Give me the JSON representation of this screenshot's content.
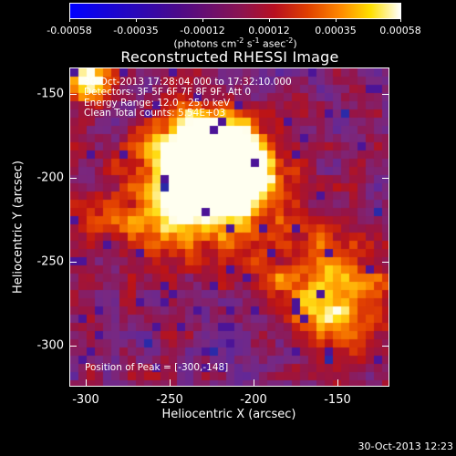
{
  "colorbar": {
    "tick_labels": [
      "-0.00058",
      "-0.00035",
      "-0.00012",
      "0.00012",
      "0.00035",
      "0.00058"
    ],
    "units": "(photons cm-2 s-1 asec-2)"
  },
  "title": "Reconstructed RHESSI Image",
  "info": {
    "time_range": "30-Oct-2013 17:28:04.000 to 17:32:10.000",
    "detectors": "Detectors: 3F 5F 6F 7F 8F 9F, Att 0",
    "energy_range": "Energy Range: 12.0 - 25.0 keV",
    "algorithm_counts": "Clean    Total counts: 5.54E+03"
  },
  "peak": "Position of Peak = [-300,-148]",
  "axes": {
    "x_label": "Heliocentric X (arcsec)",
    "y_label": "Heliocentric Y (arcsec)",
    "x_ticks": [
      "-300",
      "-250",
      "-200",
      "-150"
    ],
    "y_ticks": [
      "-150",
      "-200",
      "-250",
      "-300"
    ]
  },
  "timestamp": "30-Oct-2013 12:23",
  "colormap": {
    "stops": [
      "#0000ff",
      "#3a0066",
      "#5c2a9e",
      "#8a1060",
      "#c01010",
      "#ff7000",
      "#ffd800",
      "#ffffff"
    ]
  }
}
